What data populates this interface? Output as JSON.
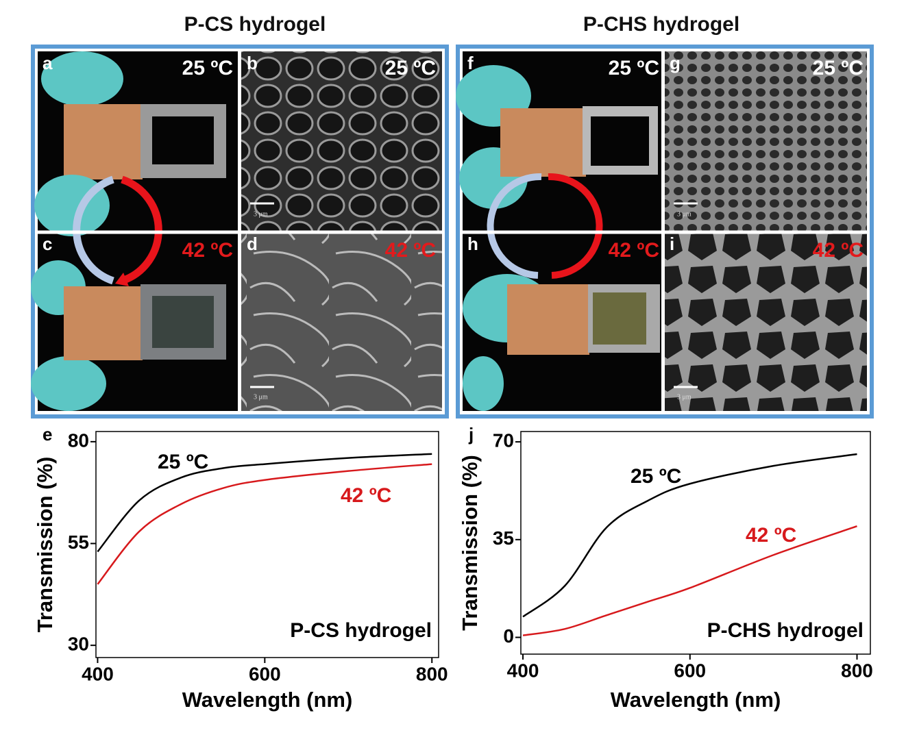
{
  "figure": {
    "titles": [
      "P-CS hydrogel",
      "P-CHS hydrogel"
    ],
    "panels": [
      {
        "letter": "a",
        "label": "25 ºC"
      },
      {
        "letter": "b",
        "label": "25 ºC"
      },
      {
        "letter": "c",
        "label": "42 ºC"
      },
      {
        "letter": "d",
        "label": "42 ºC"
      },
      {
        "letter": "f",
        "label": "25 ºC"
      },
      {
        "letter": "g",
        "label": "25 ºC"
      },
      {
        "letter": "h",
        "label": "42 ºC"
      },
      {
        "letter": "i",
        "label": "42 ºC"
      }
    ],
    "scale_bar": "3 μm"
  },
  "chart_data": [
    {
      "type": "line",
      "letter": "e",
      "annotation": "P-CS hydrogel",
      "x_label": "Wavelength (nm)",
      "y_label": "Transmission (%)",
      "x": [
        400,
        450,
        500,
        550,
        600,
        700,
        800
      ],
      "xlim": [
        398,
        808
      ],
      "ylim": [
        27,
        82.5
      ],
      "xticks": [
        400,
        600,
        800
      ],
      "yticks": [
        30,
        55,
        80
      ],
      "series": [
        {
          "name": "25 ºC",
          "color": "#000000",
          "values": [
            53,
            65.6,
            71.2,
            73.5,
            74.5,
            76,
            77
          ]
        },
        {
          "name": "42 ºC",
          "color": "#d7191c",
          "values": [
            45,
            58,
            64.7,
            68.6,
            70.6,
            72.8,
            74.5
          ]
        }
      ]
    },
    {
      "type": "line",
      "letter": "j",
      "annotation": "P-CHS hydrogel",
      "x_label": "Wavelength (nm)",
      "y_label": "Transmission (%)",
      "x": [
        400,
        450,
        500,
        550,
        600,
        700,
        800
      ],
      "xlim": [
        397.5,
        816
      ],
      "ylim": [
        -6,
        73.7
      ],
      "xticks": [
        400,
        600,
        800
      ],
      "yticks": [
        0,
        35,
        70
      ],
      "series": [
        {
          "name": "25 ºC",
          "color": "#000000",
          "values": [
            7.4,
            18.4,
            39.3,
            49,
            55,
            61.4,
            65.6
          ]
        },
        {
          "name": "42 ºC",
          "color": "#d7191c",
          "values": [
            0.7,
            3,
            7.9,
            12.8,
            17.7,
            29.5,
            39.8
          ]
        }
      ]
    }
  ]
}
